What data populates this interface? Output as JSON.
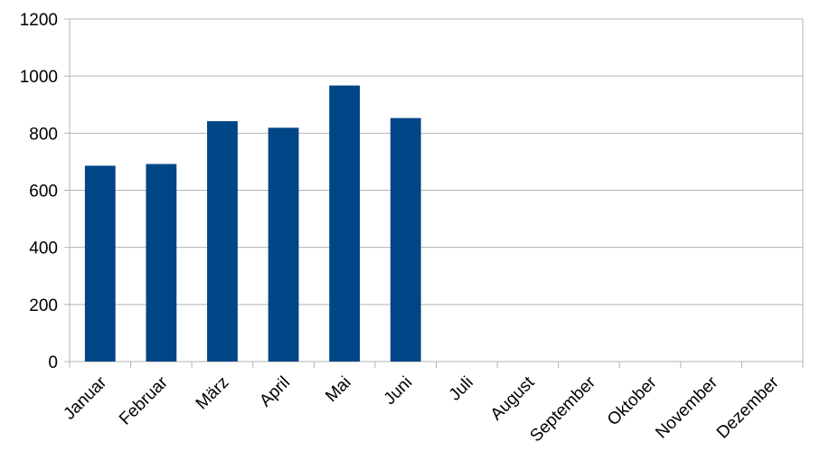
{
  "chart_data": {
    "type": "bar",
    "title": "",
    "xlabel": "",
    "ylabel": "",
    "categories": [
      "Januar",
      "Februar",
      "März",
      "April",
      "Mai",
      "Juni",
      "Juli",
      "August",
      "September",
      "Oktober",
      "November",
      "Dezember"
    ],
    "values": [
      686,
      692,
      842,
      819,
      967,
      853,
      null,
      null,
      null,
      null,
      null,
      null
    ],
    "ylim": [
      0,
      1200
    ],
    "yticks": [
      0,
      200,
      400,
      600,
      800,
      1000,
      1200
    ],
    "grid": true,
    "legend": "none",
    "bar_color": "#004586"
  }
}
